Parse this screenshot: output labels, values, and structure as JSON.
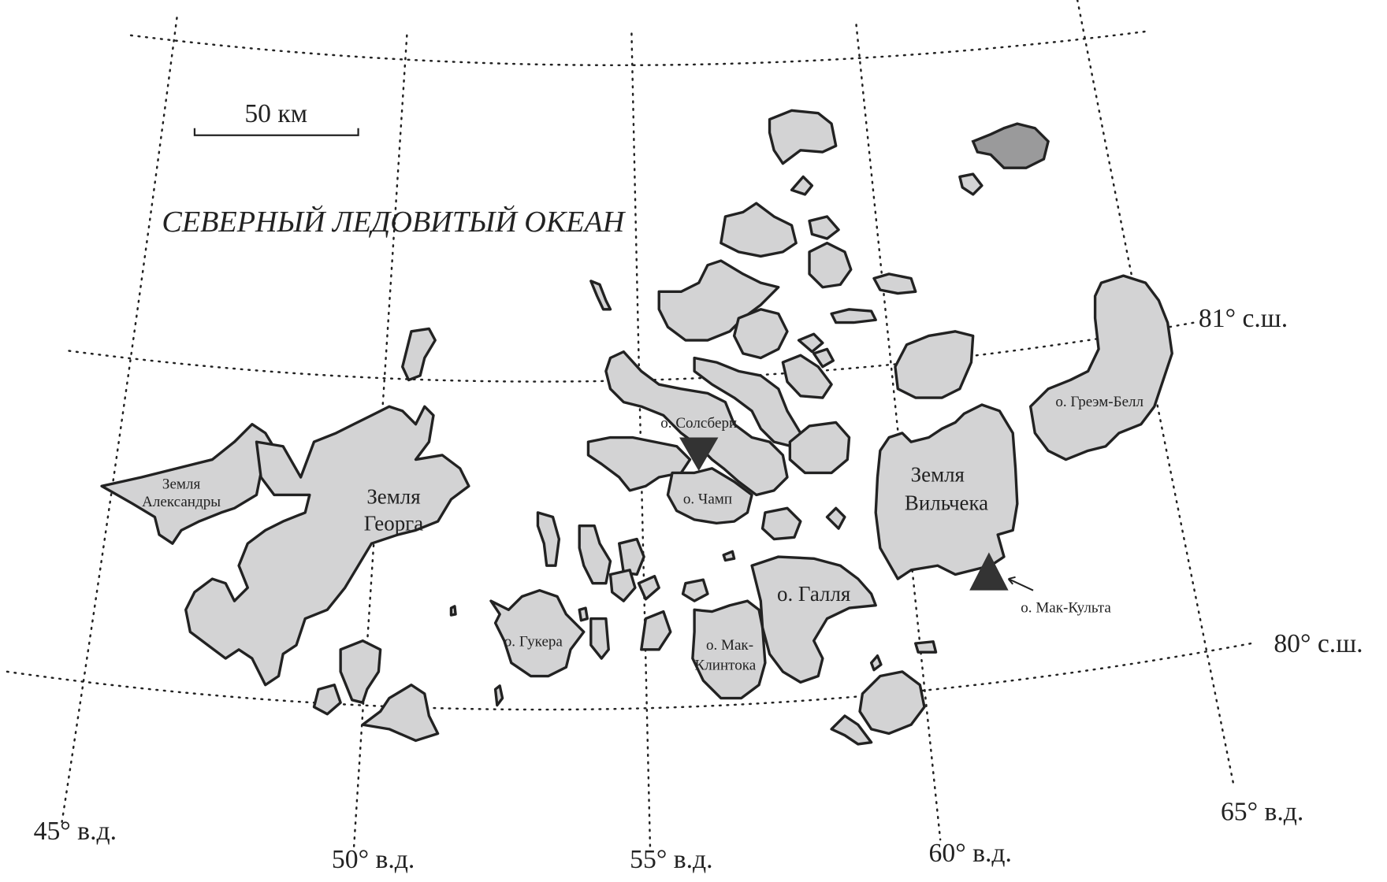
{
  "scale_bar": {
    "label": "50 км"
  },
  "ocean_label": "СЕВЕРНЫЙ ЛЕДОВИТЫЙ ОКЕАН",
  "parallels": [
    {
      "label": "81° с.ш."
    },
    {
      "label": "80° с.ш."
    }
  ],
  "meridians": [
    {
      "label": "45° в.д."
    },
    {
      "label": "50° в.д."
    },
    {
      "label": "55° в.д."
    },
    {
      "label": "60° в.д."
    },
    {
      "label": "65° в.д."
    }
  ],
  "islands": {
    "alexandra": [
      "Земля",
      "Александры"
    ],
    "george": [
      "Земля",
      "Георга"
    ],
    "salisbury": "о. Солсбери",
    "champ": "о. Чамп",
    "hooker": "о. Гукера",
    "mcclintock": [
      "о. Мак-",
      "Клинтока"
    ],
    "hall": "о. Галля",
    "wilczek": [
      "Земля",
      "Вильчека"
    ],
    "graham_bell": "о. Греэм-Белл",
    "mcculloch": "о. Мак-Культа"
  },
  "markers": [
    {
      "type": "triangle-down",
      "color": "#333333",
      "near": "о. Солсбери"
    },
    {
      "type": "triangle-up",
      "color": "#333333",
      "near": "о. Мак-Культа"
    }
  ],
  "colors": {
    "land": "#d3d3d4",
    "land_dark": "#9a9a9b",
    "outline": "#222222"
  }
}
